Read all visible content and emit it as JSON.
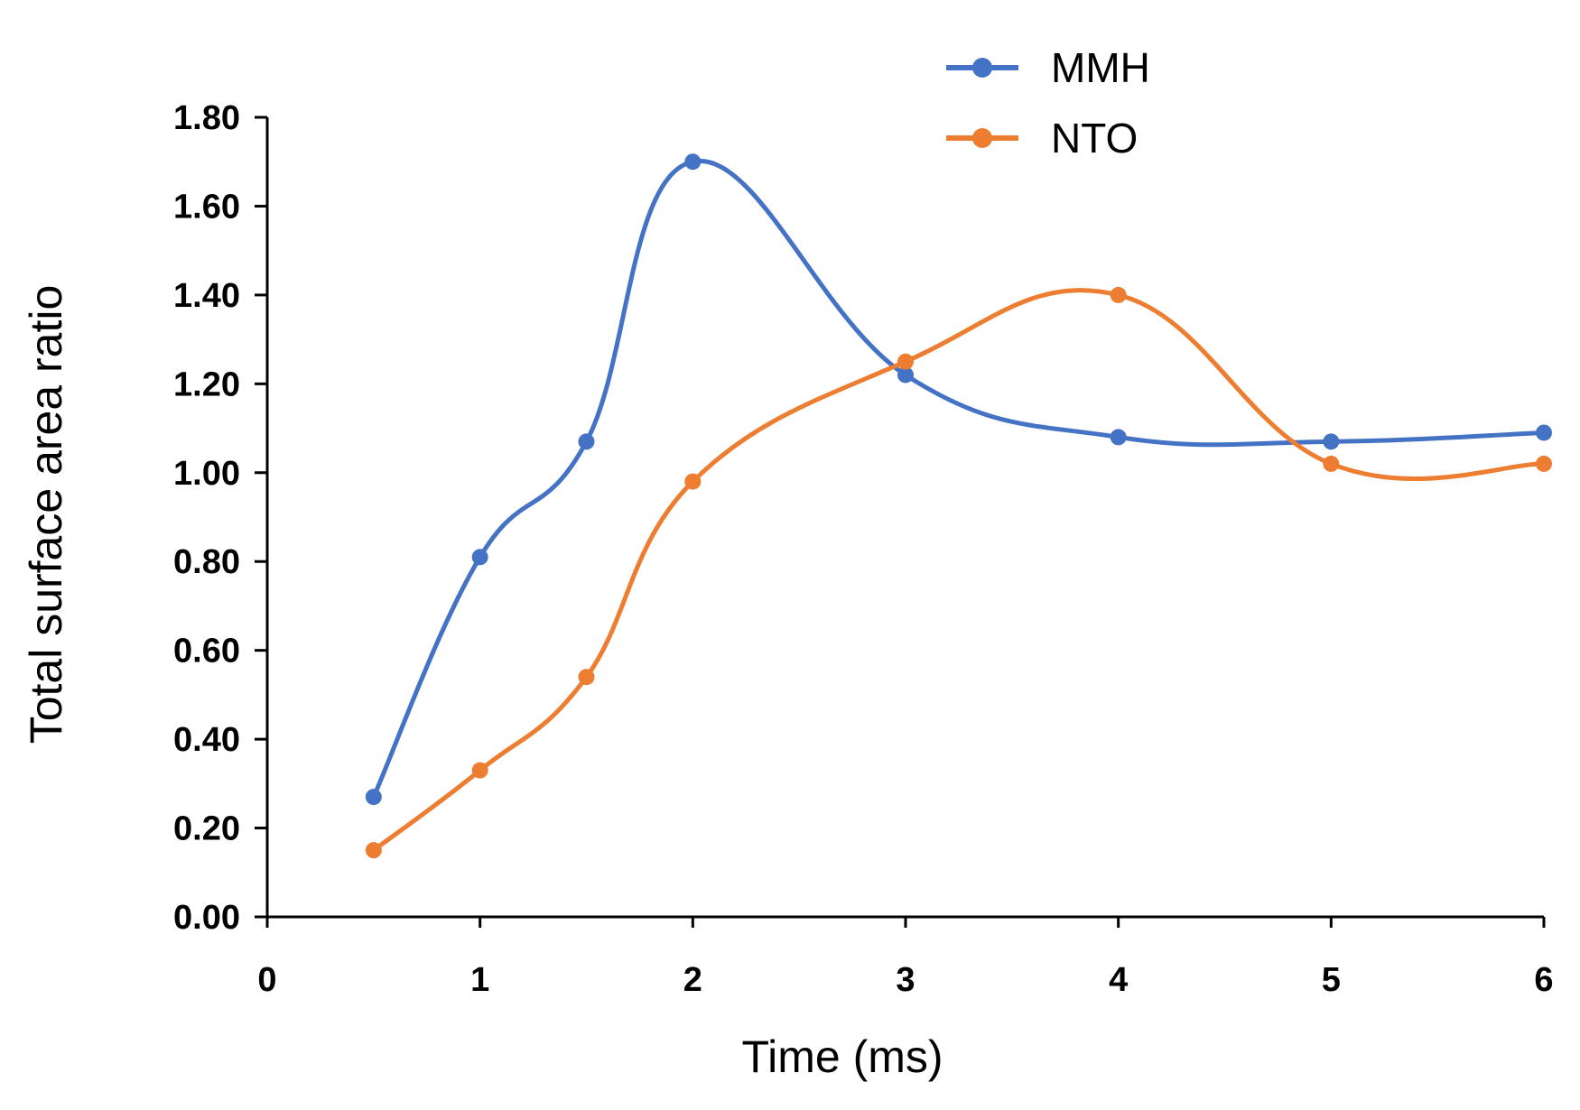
{
  "chart_data": {
    "type": "line",
    "title": "",
    "xlabel": "Time (ms)",
    "ylabel": "Total surface area ratio",
    "xlim": [
      0,
      6
    ],
    "ylim": [
      0,
      1.8
    ],
    "xticks": [
      "0",
      "1",
      "2",
      "3",
      "4",
      "5",
      "6"
    ],
    "yticks": [
      "0.00",
      "0.20",
      "0.40",
      "0.60",
      "0.80",
      "1.00",
      "1.20",
      "1.40",
      "1.60",
      "1.80"
    ],
    "grid": false,
    "smooth": true,
    "legend_position": "top-right",
    "series": [
      {
        "name": "MMH",
        "color": "#4472C4",
        "x": [
          0.5,
          1,
          1.5,
          2,
          3,
          4,
          5,
          6
        ],
        "y": [
          0.27,
          0.81,
          1.07,
          1.7,
          1.22,
          1.08,
          1.07,
          1.09
        ]
      },
      {
        "name": "NTO",
        "color": "#ED7D31",
        "x": [
          0.5,
          1,
          1.5,
          2,
          3,
          4,
          5,
          6
        ],
        "y": [
          0.15,
          0.33,
          0.54,
          0.98,
          1.25,
          1.4,
          1.02,
          1.02
        ]
      }
    ]
  }
}
